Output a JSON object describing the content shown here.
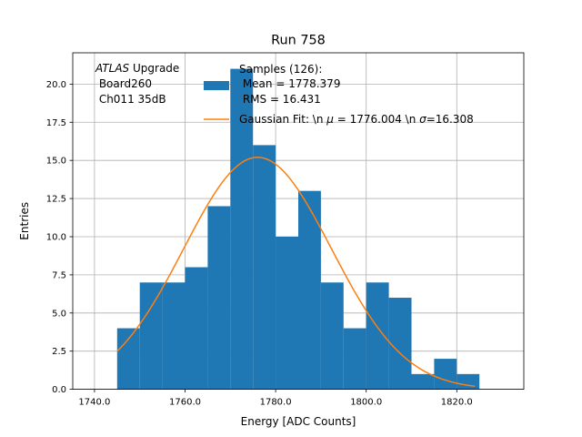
{
  "chart_data": {
    "type": "bar",
    "title": "Run 758",
    "xlabel": "Energy [ADC Counts]",
    "ylabel": "Entries",
    "xlim": [
      1735.2,
      1834.8
    ],
    "ylim": [
      0,
      22.05
    ],
    "grid": true,
    "x_ticks": [
      1740,
      1760,
      1780,
      1800,
      1820
    ],
    "x_tick_labels": [
      "1740.0",
      "1760.0",
      "1780.0",
      "1800.0",
      "1820.0"
    ],
    "y_ticks": [
      0,
      2.5,
      5,
      7.5,
      10,
      12.5,
      15,
      17.5,
      20
    ],
    "y_tick_labels": [
      "0.0",
      "2.5",
      "5.0",
      "7.5",
      "10.0",
      "12.5",
      "15.0",
      "17.5",
      "20.0"
    ],
    "histogram": {
      "bin_edges": [
        1745,
        1750,
        1755,
        1760,
        1765,
        1770,
        1775,
        1780,
        1785,
        1790,
        1795,
        1800,
        1805,
        1810,
        1815,
        1820,
        1825
      ],
      "counts": [
        4,
        7,
        7,
        8,
        12,
        21,
        16,
        10,
        13,
        7,
        4,
        7,
        6,
        1,
        2,
        1
      ],
      "color": "#1f77b4"
    },
    "fit": {
      "type": "gaussian",
      "mu": 1776.004,
      "sigma": 16.308,
      "amplitude": 15.2,
      "x_range": [
        1745,
        1824
      ],
      "color": "#ff7f0e"
    },
    "annotation": {
      "italic": "ATLAS",
      "suffix": " Upgrade",
      "line2": " Board260",
      "line3": " Ch011 35dB"
    },
    "legend": {
      "position": "top-right",
      "samples_line1": "Samples (126):",
      "samples_line2": " Mean = 1778.379",
      "samples_line3": " RMS = 16.431",
      "fit_prefix": "Gaussian Fit: \\n ",
      "fit_mu_symbol": "μ",
      "fit_mid": " = 1776.004 \\n ",
      "fit_sigma_symbol": "σ",
      "fit_suffix": "=16.308"
    }
  }
}
